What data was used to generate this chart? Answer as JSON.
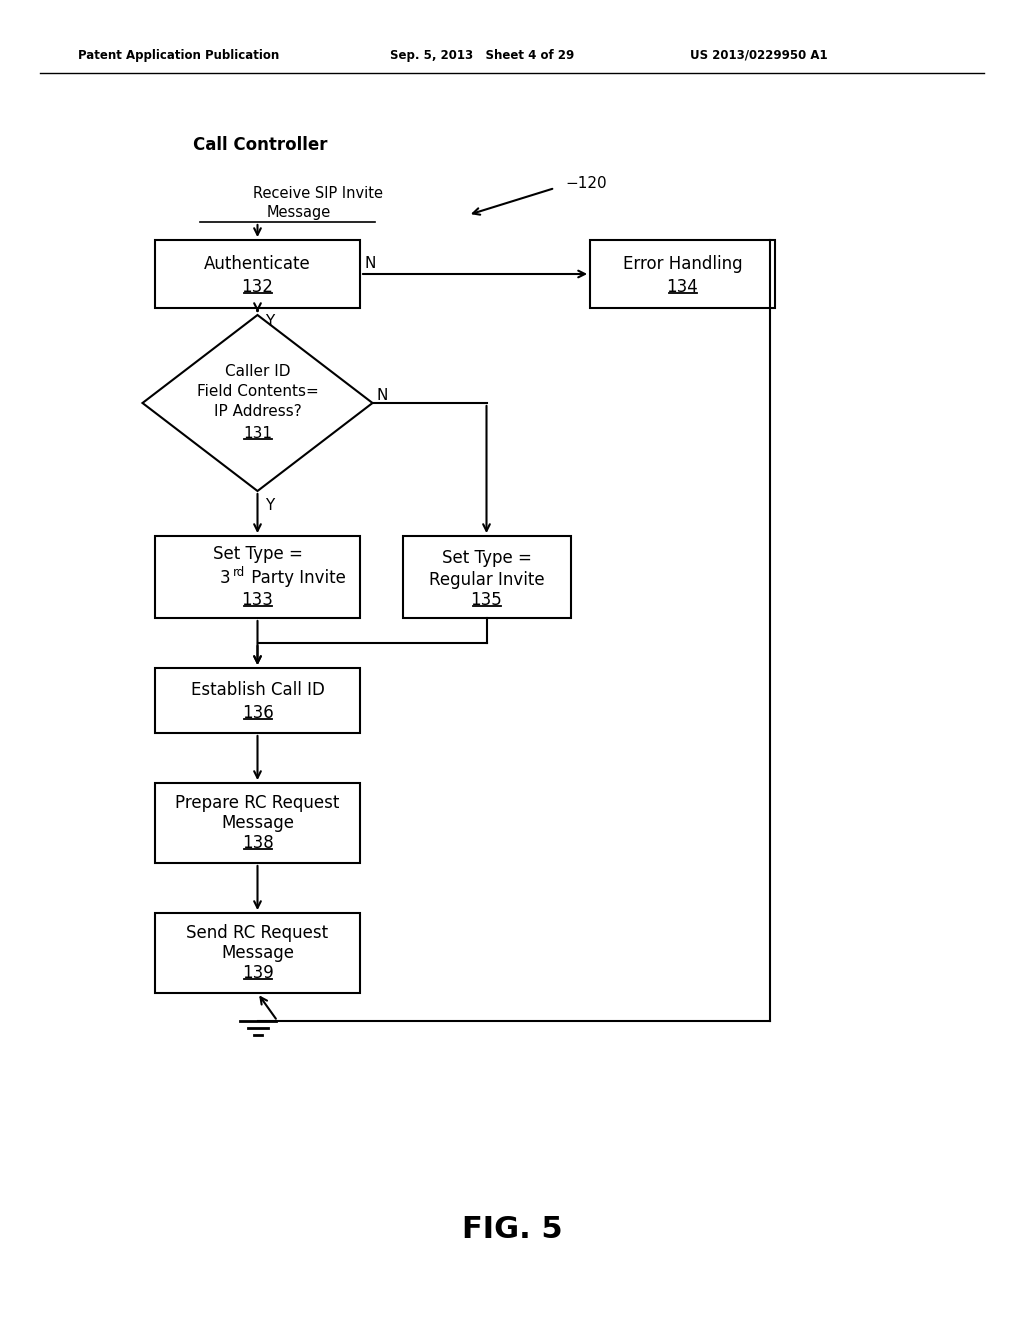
{
  "title": "FIG. 5",
  "header_left": "Patent Application Publication",
  "header_mid": "Sep. 5, 2013   Sheet 4 of 29",
  "header_right": "US 2013/0229950 A1",
  "call_controller_label": "Call Controller",
  "bg_color": "#ffffff",
  "line_color": "#000000",
  "text_color": "#000000",
  "fig_width": 10.24,
  "fig_height": 13.2,
  "dpi": 100
}
